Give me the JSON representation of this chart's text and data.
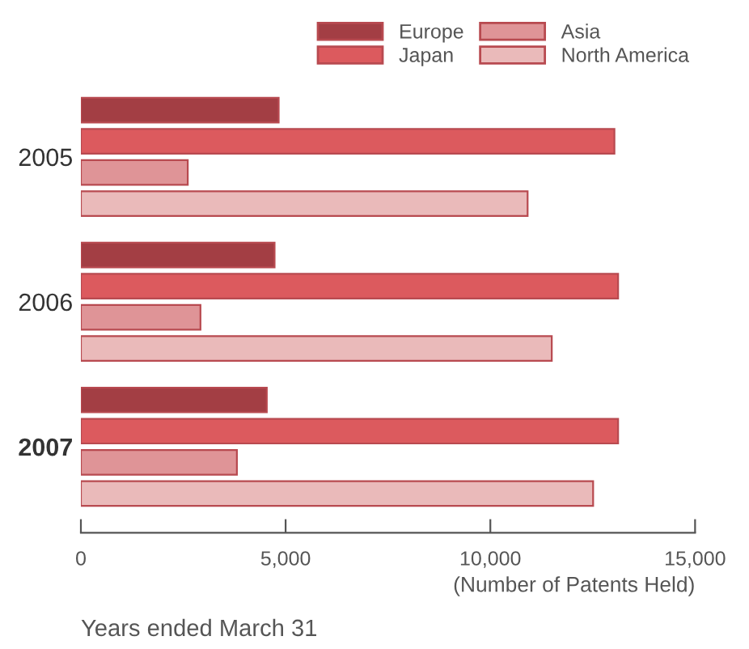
{
  "chart_data": {
    "type": "bar",
    "orientation": "horizontal",
    "categories": [
      "2005",
      "2006",
      "2007"
    ],
    "series": [
      {
        "name": "Europe",
        "color": "#a33e44",
        "values": [
          4830,
          4730,
          4540
        ]
      },
      {
        "name": "Japan",
        "color": "#dc5a5e",
        "values": [
          13030,
          13120,
          13120
        ]
      },
      {
        "name": "Asia",
        "color": "#df9497",
        "values": [
          2610,
          2920,
          3810
        ]
      },
      {
        "name": "North America",
        "color": "#eababa",
        "values": [
          10910,
          11500,
          12510
        ]
      }
    ],
    "xlim": [
      0,
      15000
    ],
    "xticks": [
      {
        "value": 0,
        "label": "0"
      },
      {
        "value": 5000,
        "label": "5,000"
      },
      {
        "value": 10000,
        "label": "10,000"
      },
      {
        "value": 15000,
        "label": "15,000"
      }
    ],
    "xlabel": "(Number of Patents Held)",
    "annotations": [
      "Years ended March 31"
    ],
    "legend": "top right",
    "grid": false
  }
}
